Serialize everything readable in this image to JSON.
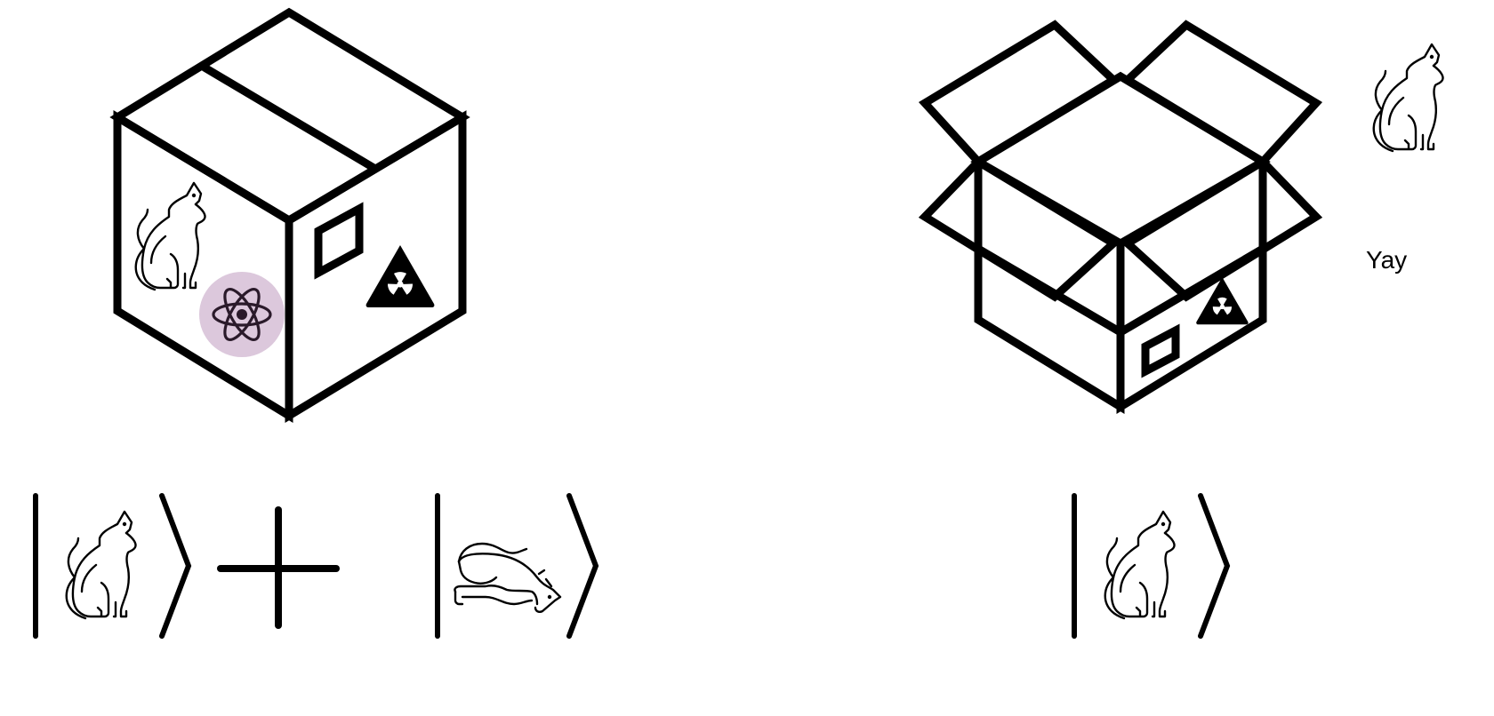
{
  "diagram": {
    "closed_box": {
      "contents": [
        "cat-icon",
        "atom-icon"
      ],
      "labels": [
        "label-window",
        "radiation-warning-icon"
      ]
    },
    "open_box": {
      "labels": [
        "label-window",
        "radiation-warning-icon"
      ],
      "outcome_icon": "cat-icon",
      "outcome_text": "Yay"
    },
    "equations": {
      "superposition": [
        "ket-alive-cat",
        "plus-sign",
        "ket-dead-cat"
      ],
      "measured": [
        "ket-alive-cat"
      ]
    },
    "colors": {
      "stroke": "#000000",
      "atom_highlight": "#dcc8dc",
      "atom_stroke": "#2a1a2a",
      "background": "#ffffff"
    }
  }
}
